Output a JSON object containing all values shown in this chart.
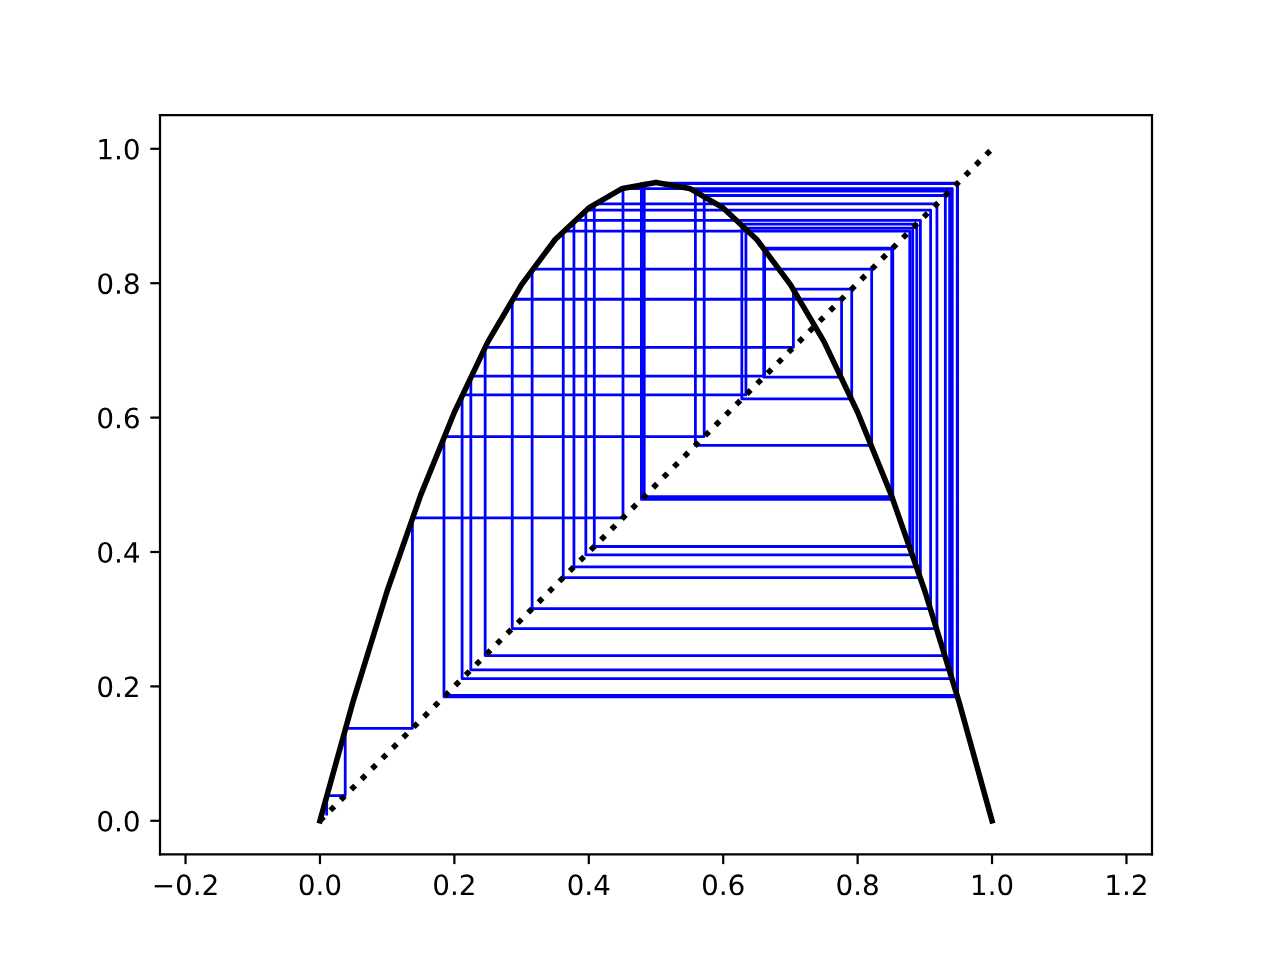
{
  "chart_data": {
    "type": "line",
    "xlim": [
      -0.238,
      1.238
    ],
    "ylim": [
      -0.05,
      1.05
    ],
    "xticks": [
      {
        "value": -0.2,
        "label": "−0.2"
      },
      {
        "value": 0.0,
        "label": "0.0"
      },
      {
        "value": 0.2,
        "label": "0.2"
      },
      {
        "value": 0.4,
        "label": "0.4"
      },
      {
        "value": 0.6,
        "label": "0.6"
      },
      {
        "value": 0.8,
        "label": "0.8"
      },
      {
        "value": 1.0,
        "label": "1.0"
      },
      {
        "value": 1.2,
        "label": "1.2"
      }
    ],
    "yticks": [
      {
        "value": 0.0,
        "label": "0.0"
      },
      {
        "value": 0.2,
        "label": "0.2"
      },
      {
        "value": 0.4,
        "label": "0.4"
      },
      {
        "value": 0.6,
        "label": "0.6"
      },
      {
        "value": 0.8,
        "label": "0.8"
      },
      {
        "value": 1.0,
        "label": "1.0"
      }
    ],
    "grid": false,
    "legend": false,
    "marker": "none",
    "series": [
      {
        "color": "#0000ff",
        "line_style": "solid",
        "x": [
          0.01,
          0.01,
          0.0376,
          0.0376,
          0.1376,
          0.1376,
          0.4509,
          0.4509,
          0.9408,
          0.9408,
          0.2115,
          0.2115,
          0.6338,
          0.6338,
          0.882,
          0.882,
          0.3956,
          0.3956,
          0.9086,
          0.9086,
          0.3157,
          0.3157,
          0.8209,
          0.8209,
          0.5586,
          0.5586,
          0.9369,
          0.9369,
          0.2245,
          0.2245,
          0.6616,
          0.6616,
          0.8507,
          0.8507,
          0.4825,
          0.4825,
          0.9488,
          0.9488,
          0.1845,
          0.1845,
          0.5717,
          0.5717,
          0.9305,
          0.9305,
          0.2458,
          0.2458,
          0.7044,
          0.7044,
          0.7912,
          0.7912,
          0.6277,
          0.6277,
          0.888,
          0.888,
          0.3779,
          0.3779,
          0.8934,
          0.8934,
          0.362,
          0.362,
          0.8776,
          0.8776,
          0.4082,
          0.4082,
          0.918,
          0.918,
          0.2861,
          0.2861,
          0.7761,
          0.7761,
          0.6603,
          0.6603,
          0.8523,
          0.8523,
          0.4783,
          0.4783,
          0.9482,
          0.9482,
          0.1866
        ],
        "values": [
          0.01,
          0.0376,
          0.0376,
          0.1376,
          0.1376,
          0.4509,
          0.4509,
          0.9408,
          0.9408,
          0.2115,
          0.2115,
          0.6338,
          0.6338,
          0.882,
          0.882,
          0.3956,
          0.3956,
          0.9086,
          0.9086,
          0.3157,
          0.3157,
          0.8209,
          0.8209,
          0.5586,
          0.5586,
          0.9369,
          0.9369,
          0.2245,
          0.2245,
          0.6616,
          0.6616,
          0.8507,
          0.8507,
          0.4825,
          0.4825,
          0.9488,
          0.9488,
          0.1845,
          0.1845,
          0.5717,
          0.5717,
          0.9305,
          0.9305,
          0.2458,
          0.2458,
          0.7044,
          0.7044,
          0.7912,
          0.7912,
          0.6277,
          0.6277,
          0.888,
          0.888,
          0.3779,
          0.3779,
          0.8934,
          0.8934,
          0.362,
          0.362,
          0.8776,
          0.8776,
          0.4082,
          0.4082,
          0.918,
          0.918,
          0.2861,
          0.2861,
          0.7761,
          0.7761,
          0.6603,
          0.6603,
          0.8523,
          0.8523,
          0.4783,
          0.4783,
          0.9482,
          0.9482,
          0.1866,
          0.1866
        ]
      },
      {
        "color": "#000000",
        "line_style": "solid",
        "x": [
          0,
          0.05,
          0.1,
          0.15,
          0.2,
          0.25,
          0.3,
          0.35,
          0.4,
          0.45,
          0.5,
          0.55,
          0.6,
          0.65,
          0.7,
          0.75,
          0.8,
          0.85,
          0.9,
          0.95,
          1.0
        ],
        "values": [
          0,
          0.18,
          0.342,
          0.485,
          0.608,
          0.713,
          0.798,
          0.865,
          0.912,
          0.941,
          0.95,
          0.941,
          0.912,
          0.865,
          0.798,
          0.713,
          0.608,
          0.485,
          0.342,
          0.18,
          0
        ]
      },
      {
        "color": "#000000",
        "line_style": "dotted",
        "x": [
          0,
          1
        ],
        "values": [
          0,
          1
        ]
      }
    ]
  }
}
